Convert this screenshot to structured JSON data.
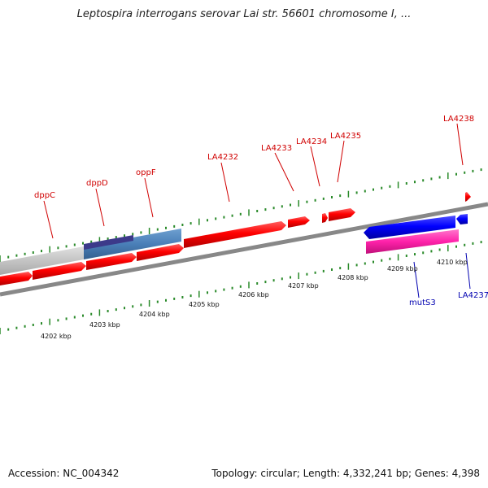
{
  "title": "Leptospira interrogans serovar Lai str. 56601 chromosome I, ...",
  "footer": {
    "accession": "Accession: NC_004342",
    "topology": "Topology: circular; Length: 4,332,241 bp; Genes: 4,398"
  },
  "colors": {
    "cds": "#ff0000",
    "cds_highlight": "#0000ff",
    "rna_pink": "#ff33aa",
    "region_blue": "#4a7fb8",
    "region_dark": "#3c3a8a",
    "region_gray": "#c8c8c8",
    "backbone": "#888888",
    "tick": "#2a8a2a",
    "label_red": "#d00000",
    "label_blue": "#0000b0"
  },
  "kbp_ticks": [
    "4202 kbp",
    "4203 kbp",
    "4204 kbp",
    "4205 kbp",
    "4206 kbp",
    "4207 kbp",
    "4208 kbp",
    "4209 kbp",
    "4210 kbp"
  ],
  "top_gene_labels": [
    "dppC",
    "dppD",
    "oppF",
    "LA4232",
    "LA4233",
    "LA4234",
    "LA4235",
    "LA4238"
  ],
  "bottom_gene_labels": [
    "mutS3",
    "LA4237"
  ]
}
